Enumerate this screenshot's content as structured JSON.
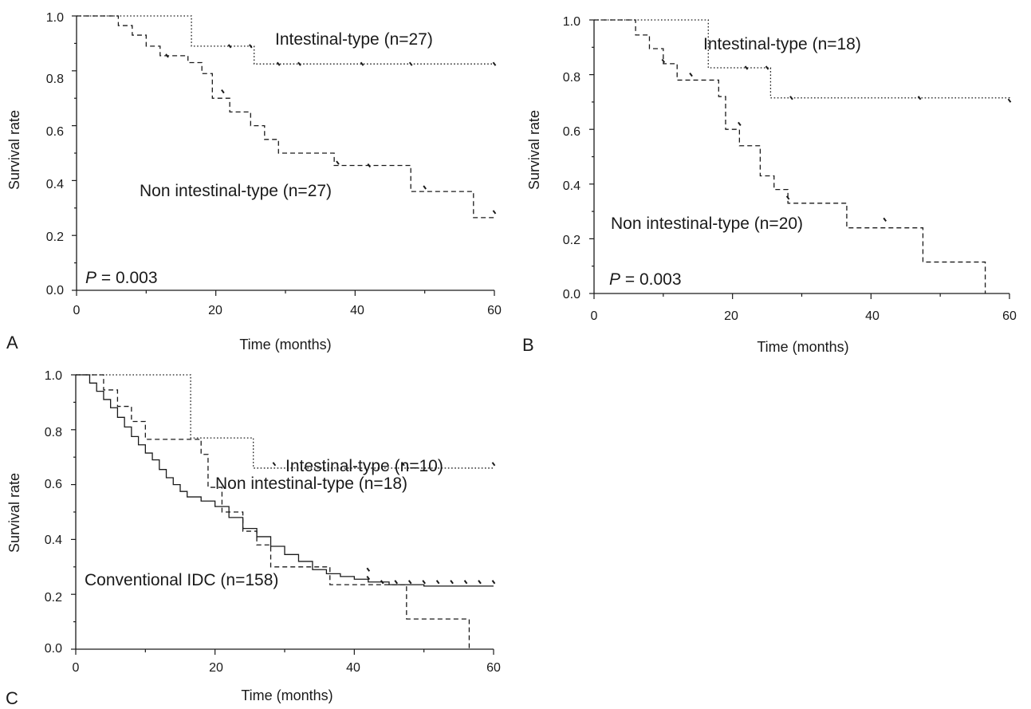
{
  "chart_data": [
    {
      "type": "line",
      "panel": "A",
      "xlabel": "Time (months)",
      "ylabel": "Survival rate",
      "xlim": [
        0,
        60
      ],
      "ylim": [
        0,
        1
      ],
      "xticks": [
        "0",
        "20",
        "40",
        "60"
      ],
      "yticks": [
        "0.0",
        "0.2",
        "0.4",
        "0.6",
        "0.8",
        "1.0"
      ],
      "p_prefix": "P",
      "p_value": " = 0.003",
      "series": [
        {
          "name": "Intestinal-type (n=27)",
          "style": "dotted",
          "steps": [
            [
              0,
              1.0
            ],
            [
              16.5,
              0.89
            ],
            [
              25.5,
              0.825
            ],
            [
              60,
              0.825
            ]
          ],
          "censors": [
            [
              22,
              0.89
            ],
            [
              25,
              0.89
            ],
            [
              29,
              0.825
            ],
            [
              32,
              0.825
            ],
            [
              41,
              0.825
            ],
            [
              48,
              0.825
            ],
            [
              60,
              0.825
            ]
          ]
        },
        {
          "name": "Non intestinal-type (n=27)",
          "style": "dashed",
          "steps": [
            [
              0,
              1.0
            ],
            [
              6,
              0.965
            ],
            [
              8,
              0.93
            ],
            [
              10,
              0.89
            ],
            [
              12,
              0.855
            ],
            [
              16,
              0.83
            ],
            [
              18,
              0.79
            ],
            [
              19.5,
              0.7
            ],
            [
              22,
              0.65
            ],
            [
              25,
              0.6
            ],
            [
              27,
              0.55
            ],
            [
              29,
              0.5
            ],
            [
              37,
              0.455
            ],
            [
              48,
              0.36
            ],
            [
              57,
              0.265
            ],
            [
              60,
              0.265
            ]
          ],
          "censors": [
            [
              13,
              0.855
            ],
            [
              21,
              0.725
            ],
            [
              37.5,
              0.465
            ],
            [
              42,
              0.455
            ],
            [
              50,
              0.375
            ],
            [
              60,
              0.285
            ]
          ]
        }
      ]
    },
    {
      "type": "line",
      "panel": "B",
      "xlabel": "Time (months)",
      "ylabel": "Survival rate",
      "xlim": [
        0,
        60
      ],
      "ylim": [
        0,
        1
      ],
      "xticks": [
        "0",
        "20",
        "40",
        "60"
      ],
      "yticks": [
        "0.0",
        "0.2",
        "0.4",
        "0.6",
        "0.8",
        "1.0"
      ],
      "p_prefix": "P",
      "p_value": " = 0.003",
      "series": [
        {
          "name": "Intestinal-type (n=18)",
          "style": "dotted",
          "steps": [
            [
              0,
              1.0
            ],
            [
              16.5,
              0.825
            ],
            [
              25.5,
              0.715
            ],
            [
              60,
              0.705
            ]
          ],
          "censors": [
            [
              22,
              0.825
            ],
            [
              25,
              0.825
            ],
            [
              28.5,
              0.715
            ],
            [
              47,
              0.715
            ],
            [
              60,
              0.705
            ]
          ]
        },
        {
          "name": "Non intestinal-type (n=20)",
          "style": "dashed",
          "steps": [
            [
              0,
              1.0
            ],
            [
              6,
              0.945
            ],
            [
              8,
              0.895
            ],
            [
              10,
              0.84
            ],
            [
              12,
              0.78
            ],
            [
              18,
              0.72
            ],
            [
              19,
              0.6
            ],
            [
              21,
              0.54
            ],
            [
              24,
              0.43
            ],
            [
              26,
              0.38
            ],
            [
              28,
              0.33
            ],
            [
              36.5,
              0.24
            ],
            [
              47.5,
              0.115
            ],
            [
              56.5,
              0.0
            ]
          ],
          "censors": [
            [
              10,
              0.85
            ],
            [
              14,
              0.8
            ],
            [
              21,
              0.62
            ],
            [
              28,
              0.35
            ],
            [
              42,
              0.27
            ]
          ]
        }
      ]
    },
    {
      "type": "line",
      "panel": "C",
      "xlabel": "Time (months)",
      "ylabel": "Survival rate",
      "xlim": [
        0,
        60
      ],
      "ylim": [
        0,
        1
      ],
      "xticks": [
        "0",
        "20",
        "40",
        "60"
      ],
      "yticks": [
        "0.0",
        "0.2",
        "0.4",
        "0.6",
        "0.8",
        "1.0"
      ],
      "series": [
        {
          "name": "Intestinal-type (n=10)",
          "style": "dotted",
          "steps": [
            [
              0,
              1.0
            ],
            [
              16.5,
              0.77
            ],
            [
              25.5,
              0.66
            ],
            [
              60,
              0.66
            ]
          ],
          "censors": [
            [
              28.5,
              0.675
            ],
            [
              47,
              0.675
            ],
            [
              60,
              0.675
            ]
          ]
        },
        {
          "name": "Non intestinal-type (n=18)",
          "style": "dashed",
          "steps": [
            [
              0,
              1.0
            ],
            [
              4,
              0.945
            ],
            [
              6,
              0.885
            ],
            [
              8,
              0.83
            ],
            [
              10,
              0.765
            ],
            [
              18,
              0.71
            ],
            [
              19,
              0.59
            ],
            [
              21,
              0.5
            ],
            [
              24,
              0.43
            ],
            [
              26,
              0.38
            ],
            [
              28,
              0.3
            ],
            [
              36.5,
              0.235
            ],
            [
              47.5,
              0.11
            ],
            [
              56.5,
              0.0
            ]
          ],
          "censors": [
            [
              42,
              0.26
            ]
          ]
        },
        {
          "name": "Conventional IDC (n=158)",
          "style": "solid",
          "steps": [
            [
              0,
              1.0
            ],
            [
              2,
              0.97
            ],
            [
              3,
              0.94
            ],
            [
              4,
              0.91
            ],
            [
              5,
              0.88
            ],
            [
              6,
              0.845
            ],
            [
              7,
              0.81
            ],
            [
              8,
              0.775
            ],
            [
              9,
              0.745
            ],
            [
              10,
              0.715
            ],
            [
              11,
              0.69
            ],
            [
              12,
              0.655
            ],
            [
              13,
              0.625
            ],
            [
              14,
              0.6
            ],
            [
              15,
              0.575
            ],
            [
              16,
              0.555
            ],
            [
              18,
              0.54
            ],
            [
              20,
              0.52
            ],
            [
              22,
              0.48
            ],
            [
              24,
              0.44
            ],
            [
              26,
              0.41
            ],
            [
              28,
              0.375
            ],
            [
              30,
              0.345
            ],
            [
              32,
              0.32
            ],
            [
              34,
              0.29
            ],
            [
              36,
              0.275
            ],
            [
              38,
              0.265
            ],
            [
              40,
              0.255
            ],
            [
              42,
              0.245
            ],
            [
              45,
              0.235
            ],
            [
              50,
              0.23
            ],
            [
              60,
              0.23
            ]
          ],
          "censors": [
            [
              44,
              0.245
            ],
            [
              46,
              0.245
            ],
            [
              48,
              0.245
            ],
            [
              50,
              0.245
            ],
            [
              52,
              0.245
            ],
            [
              54,
              0.245
            ],
            [
              56,
              0.245
            ],
            [
              58,
              0.245
            ],
            [
              60,
              0.245
            ],
            [
              42,
              0.29
            ]
          ]
        }
      ]
    }
  ]
}
